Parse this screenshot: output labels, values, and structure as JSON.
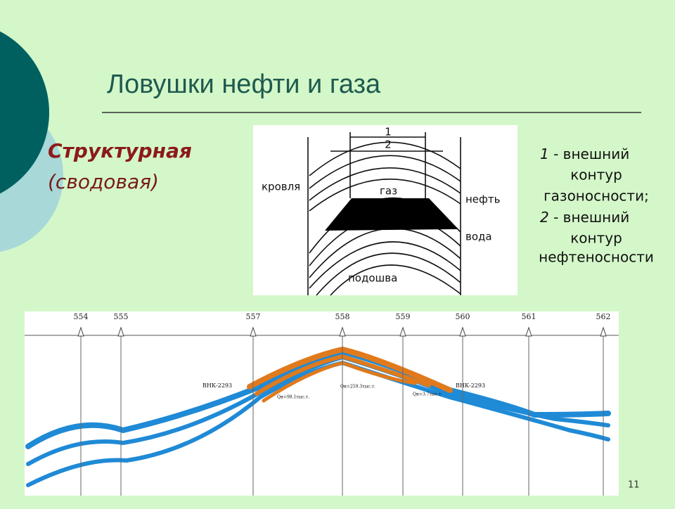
{
  "header": {
    "title": "Ловушки нефти и газа"
  },
  "trap": {
    "type_line1": "Структурная",
    "type_line2": "(сводовая)"
  },
  "diagram": {
    "labels": {
      "one": "1",
      "two": "2",
      "roof": "кровля",
      "gas": "газ",
      "oil": "нефть",
      "water": "вода",
      "base": "подошва"
    }
  },
  "legend": [
    {
      "number": "1",
      "lines": [
        "- внешний",
        "контур",
        "газоносности;"
      ]
    },
    {
      "number": "2",
      "lines": [
        "- внешний",
        "контур",
        "нефтеносности"
      ]
    }
  ],
  "section": {
    "wells": [
      "554",
      "555",
      "557",
      "558",
      "559",
      "560",
      "561",
      "562"
    ],
    "contacts": [
      "ВНК-2293",
      "ВНК-2293"
    ],
    "yields": [
      "Qн=98.1тыс.т.",
      "Qн=259.3тыс.т.",
      "Qн=3.7тыс.т."
    ]
  },
  "footer": {
    "slide_number": "11"
  }
}
